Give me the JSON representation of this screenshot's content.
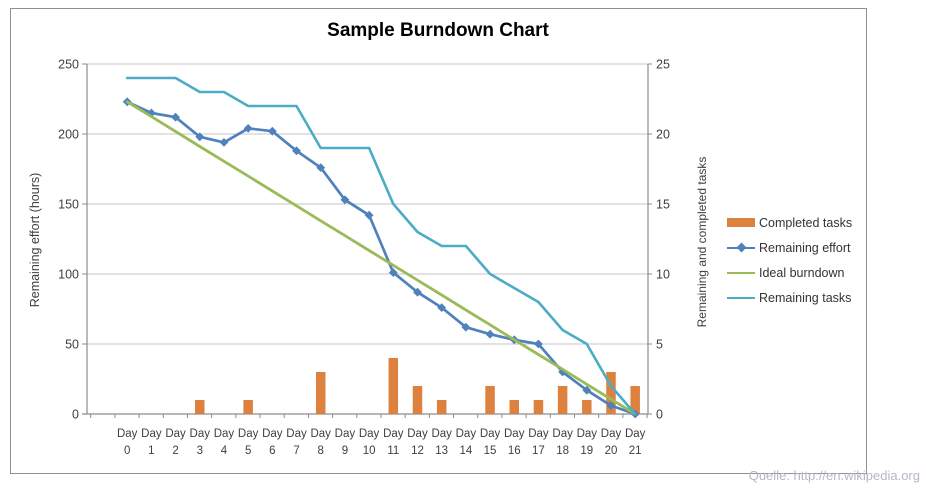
{
  "frame": {
    "border_color": "#909090",
    "background": "#ffffff"
  },
  "source": {
    "text": "Quelle: http://en.wikipedia.org",
    "color": "#b4b7c9"
  },
  "style_colors": {
    "gridline": "#c6c6c6",
    "axis_line": "#8c8c8c",
    "tick_label": "#3f3f3f",
    "title": "#000000"
  },
  "chart_data": {
    "type": "combo-bar-line",
    "title": "Sample Burndown Chart",
    "grid": "horizontal",
    "legend_position": "right",
    "x_axis": {
      "label_prefix": "Day",
      "categories": [
        "0",
        "1",
        "2",
        "3",
        "4",
        "5",
        "6",
        "7",
        "8",
        "9",
        "10",
        "11",
        "12",
        "13",
        "14",
        "15",
        "16",
        "17",
        "18",
        "19",
        "20",
        "21"
      ]
    },
    "left_axis": {
      "title": "Remaining effort (hours)",
      "min": 0,
      "max": 250,
      "tick_step": 50,
      "ticks": [
        "0",
        "50",
        "100",
        "150",
        "200",
        "250"
      ]
    },
    "right_axis": {
      "title": "Remaining and completed tasks",
      "min": 0,
      "max": 25,
      "tick_step": 5,
      "ticks": [
        "0",
        "5",
        "10",
        "15",
        "20",
        "25"
      ]
    },
    "series": [
      {
        "name": "Completed tasks",
        "type": "bar",
        "axis": "right",
        "color": "#dc823e",
        "values": [
          null,
          null,
          null,
          1,
          null,
          1,
          null,
          null,
          3,
          null,
          null,
          4,
          2,
          1,
          null,
          2,
          1,
          1,
          2,
          1,
          3,
          2
        ]
      },
      {
        "name": "Remaining effort",
        "type": "line",
        "marker": "diamond",
        "axis": "left",
        "color": "#4f81bd",
        "values": [
          223,
          215,
          212,
          198,
          194,
          204,
          202,
          188,
          176,
          153,
          142,
          101,
          87,
          76,
          62,
          57,
          53,
          50,
          30,
          17,
          6,
          0
        ]
      },
      {
        "name": "Ideal burndown",
        "type": "line",
        "marker": "none",
        "axis": "left",
        "color": "#9bbb59",
        "values": [
          223,
          212.4,
          201.8,
          191.1,
          180.5,
          169.9,
          159.3,
          148.7,
          138.0,
          127.4,
          116.8,
          106.2,
          95.6,
          85.0,
          74.3,
          63.7,
          53.1,
          42.5,
          31.9,
          21.2,
          10.6,
          0
        ]
      },
      {
        "name": "Remaining tasks",
        "type": "line",
        "marker": "none",
        "axis": "right",
        "color": "#4bacc6",
        "values": [
          24,
          24,
          24,
          23,
          23,
          22,
          22,
          22,
          19,
          19,
          19,
          15,
          13,
          12,
          12,
          10,
          9,
          8,
          6,
          5,
          2,
          0
        ]
      }
    ]
  }
}
